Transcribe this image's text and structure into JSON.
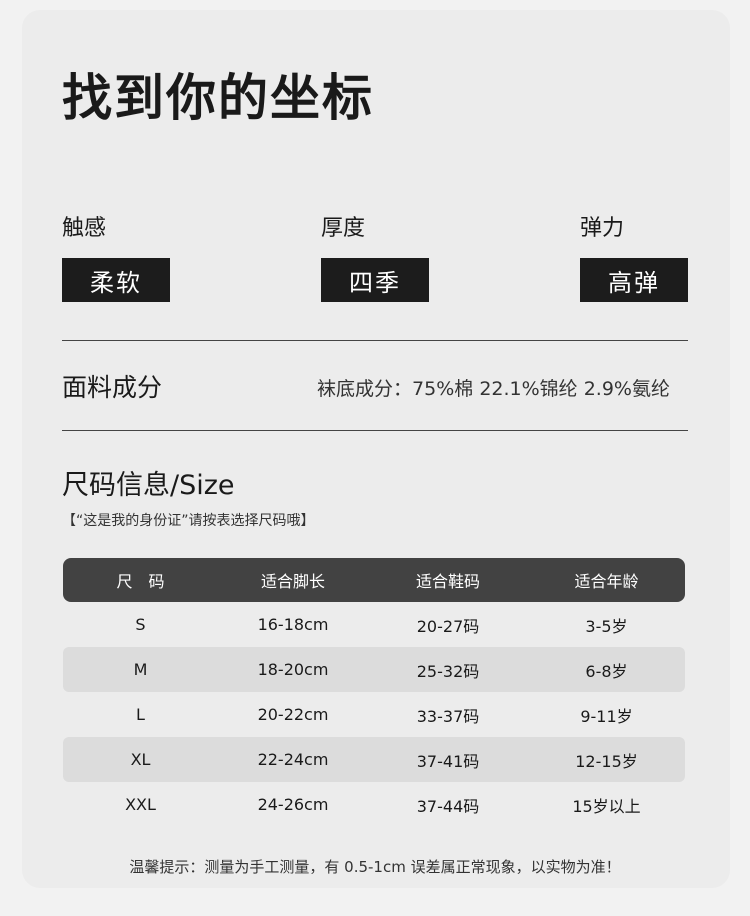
{
  "title": "找到你的坐标",
  "features": [
    {
      "label": "触感",
      "value": "柔软"
    },
    {
      "label": "厚度",
      "value": "四季"
    },
    {
      "label": "弹力",
      "value": "高弹"
    }
  ],
  "fabric": {
    "label": "面料成分",
    "value": "袜底成分：75%棉  22.1%锦纶  2.9%氨纶"
  },
  "size": {
    "title": "尺码信息/Size",
    "subtitle": "【“这是我的身份证”请按表选择尺码哦】",
    "headers": [
      "尺　码",
      "适合脚长",
      "适合鞋码",
      "适合年龄"
    ],
    "rows": [
      [
        "S",
        "16-18cm",
        "20-27码",
        "3-5岁"
      ],
      [
        "M",
        "18-20cm",
        "25-32码",
        "6-8岁"
      ],
      [
        "L",
        "20-22cm",
        "33-37码",
        "9-11岁"
      ],
      [
        "XL",
        "22-24cm",
        "37-41码",
        "12-15岁"
      ],
      [
        "XXL",
        "24-26cm",
        "37-44码",
        "15岁以上"
      ]
    ]
  },
  "note": "温馨提示：测量为手工测量，有 0.5-1cm 误差属正常现象，以实物为准！"
}
